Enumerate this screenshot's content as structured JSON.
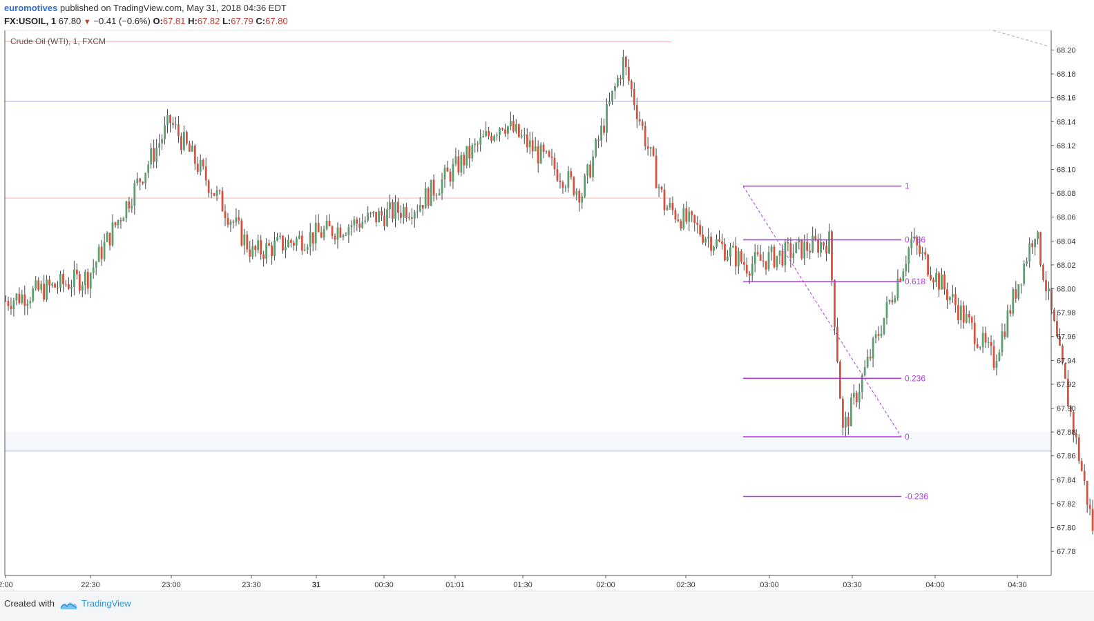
{
  "header": {
    "author": "euromotives",
    "published_text": "published on TradingView.com, May 31, 2018 04:36 EDT",
    "symbol": "FX:USOIL, 1",
    "last": "67.80",
    "change": "−0.41 (−0.6%)",
    "open_label": "O:",
    "open": "67.81",
    "high_label": "H:",
    "high": "67.82",
    "low_label": "L:",
    "low": "67.79",
    "close_label": "C:",
    "close": "67.80"
  },
  "footer": {
    "created_with": "Created with",
    "brand": "TradingView"
  },
  "colors": {
    "up": "#5b9e6f",
    "down": "#d6513e",
    "fib": "#b03ce0",
    "hline_blue": "#a8a8e0",
    "hline_red": "#f2b6b6",
    "axis": "#555555",
    "brand": "#2b95d6"
  },
  "chart_data": {
    "type": "candlestick",
    "title": "Crude Oil (WTI), 1, FXCM",
    "y_ticks": [
      "68.20",
      "68.18",
      "68.16",
      "68.14",
      "68.12",
      "68.10",
      "68.08",
      "68.06",
      "68.04",
      "68.02",
      "68.00",
      "67.98",
      "67.96",
      "67.94",
      "67.92",
      "67.90",
      "67.88",
      "67.86",
      "67.84",
      "67.82",
      "67.80",
      "67.78"
    ],
    "x_ticks": [
      "2:00",
      "22:30",
      "23:00",
      "23:30",
      "31",
      "00:30",
      "01:01",
      "01:30",
      "02:00",
      "02:30",
      "03:00",
      "03:30",
      "04:00",
      "04:30"
    ],
    "ylim": [
      67.765,
      68.215
    ],
    "horizontal_lines": [
      {
        "price": 68.207,
        "color": "red",
        "extent": "left-half"
      },
      {
        "price": 68.157,
        "color": "blue",
        "extent": "full"
      },
      {
        "price": 68.076,
        "color": "red",
        "extent": "left-half"
      },
      {
        "price": 67.864,
        "color": "blue",
        "extent": "full"
      }
    ],
    "fibonacci": {
      "high": 68.086,
      "low": 67.876,
      "levels": [
        {
          "ratio": "1",
          "price": 68.086
        },
        {
          "ratio": "0.786",
          "price": 68.041
        },
        {
          "ratio": "0.618",
          "price": 68.006
        },
        {
          "ratio": "0.236",
          "price": 67.925
        },
        {
          "ratio": "0",
          "price": 67.876
        },
        {
          "ratio": "-0.236",
          "price": 67.826
        }
      ]
    },
    "key_points": [
      {
        "time": "22:00",
        "price": 67.99
      },
      {
        "time": "22:30",
        "price": 68.01
      },
      {
        "time": "23:00",
        "price": 68.14
      },
      {
        "time": "23:30",
        "price": 68.03
      },
      {
        "time": "00:30",
        "price": 68.07
      },
      {
        "time": "01:01",
        "price": 68.14
      },
      {
        "time": "01:30",
        "price": 68.08
      },
      {
        "time": "01:45",
        "price": 68.19
      },
      {
        "time": "02:00",
        "price": 68.07
      },
      {
        "time": "02:30",
        "price": 68.02
      },
      {
        "time": "03:00",
        "price": 68.04
      },
      {
        "time": "03:05",
        "price": 67.88
      },
      {
        "time": "03:30",
        "price": 68.04
      },
      {
        "time": "04:00",
        "price": 67.94
      },
      {
        "time": "04:15",
        "price": 68.05
      },
      {
        "time": "04:36",
        "price": 67.8
      }
    ]
  }
}
